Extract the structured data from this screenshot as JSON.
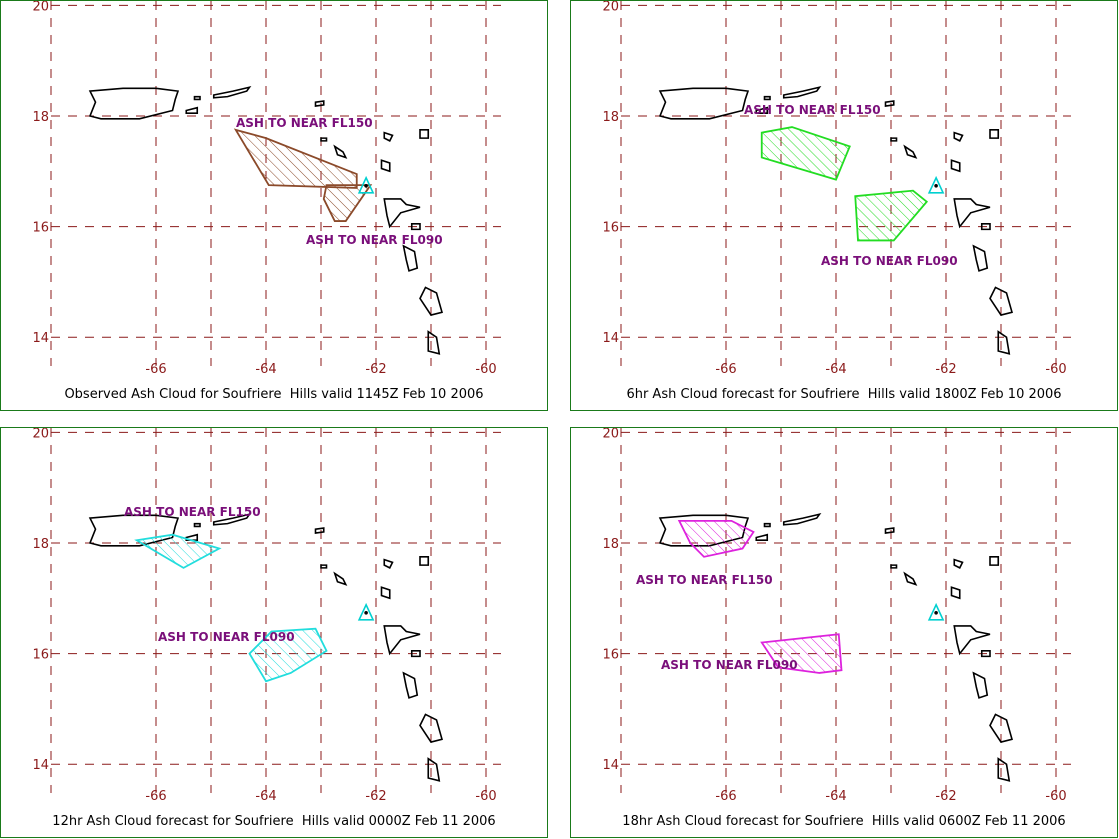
{
  "map": {
    "lat_ticks": [
      "20",
      "18",
      "16",
      "14"
    ],
    "lon_ticks": [
      "-66",
      "-64",
      "-62",
      "-60"
    ],
    "colors": {
      "grid": "#8b1a1a",
      "tick_label": "#8b1a1a",
      "coast": "#000000",
      "volcano": "#00d0d0",
      "ash_label": "#7a0f7a",
      "frame": "#1a7a1a"
    },
    "volcano_icon": "volcano-triangle-icon"
  },
  "panels": [
    {
      "id": "observed",
      "caption": "Observed Ash Cloud for Soufriere  Hills valid 1145Z Feb 10 2006",
      "color": "#8b4a2a",
      "areas": [
        {
          "label": "ASH TO NEAR FL150",
          "points": [
            [
              -64.55,
              17.75
            ],
            [
              -64.0,
              17.6
            ],
            [
              -62.35,
              16.95
            ],
            [
              -62.35,
              16.7
            ],
            [
              -63.95,
              16.75
            ]
          ]
        },
        {
          "label": "ASH TO NEAR FL090",
          "points": [
            [
              -62.9,
              16.75
            ],
            [
              -62.1,
              16.75
            ],
            [
              -62.55,
              16.1
            ],
            [
              -62.75,
              16.1
            ],
            [
              -62.95,
              16.5
            ]
          ]
        }
      ]
    },
    {
      "id": "6hr",
      "caption": "6hr Ash Cloud forecast for Soufriere  Hills valid 1800Z Feb 10 2006",
      "color": "#22dd22",
      "areas": [
        {
          "label": "ASH TO NEAR FL150",
          "points": [
            [
              -65.35,
              17.7
            ],
            [
              -64.8,
              17.8
            ],
            [
              -63.75,
              17.45
            ],
            [
              -64.0,
              16.85
            ],
            [
              -65.35,
              17.25
            ]
          ]
        },
        {
          "label": "ASH TO NEAR FL090",
          "points": [
            [
              -63.65,
              16.55
            ],
            [
              -62.6,
              16.65
            ],
            [
              -62.35,
              16.45
            ],
            [
              -62.95,
              15.75
            ],
            [
              -63.6,
              15.75
            ]
          ]
        }
      ]
    },
    {
      "id": "12hr",
      "caption": "12hr Ash Cloud forecast for Soufriere  Hills valid 0000Z Feb 11 2006",
      "color": "#22dddd",
      "areas": [
        {
          "label": "ASH TO NEAR FL150",
          "points": [
            [
              -66.35,
              18.05
            ],
            [
              -65.7,
              18.15
            ],
            [
              -64.85,
              17.9
            ],
            [
              -65.5,
              17.55
            ]
          ]
        },
        {
          "label": "ASH TO NEAR FL090",
          "points": [
            [
              -64.3,
              16.0
            ],
            [
              -63.9,
              16.4
            ],
            [
              -63.1,
              16.45
            ],
            [
              -62.9,
              16.05
            ],
            [
              -63.55,
              15.65
            ],
            [
              -64.0,
              15.5
            ]
          ]
        }
      ]
    },
    {
      "id": "18hr",
      "caption": "18hr Ash Cloud forecast for Soufriere  Hills valid 0600Z Feb 11 2006",
      "color": "#dd22dd",
      "areas": [
        {
          "label": "ASH TO NEAR FL150",
          "points": [
            [
              -66.85,
              18.4
            ],
            [
              -65.9,
              18.4
            ],
            [
              -65.5,
              18.2
            ],
            [
              -65.7,
              17.9
            ],
            [
              -66.4,
              17.75
            ],
            [
              -66.65,
              18.0
            ]
          ]
        },
        {
          "label": "ASH TO NEAR FL090",
          "points": [
            [
              -65.35,
              16.2
            ],
            [
              -63.95,
              16.35
            ],
            [
              -63.9,
              15.7
            ],
            [
              -64.3,
              15.65
            ],
            [
              -65.05,
              15.75
            ]
          ]
        }
      ]
    }
  ]
}
